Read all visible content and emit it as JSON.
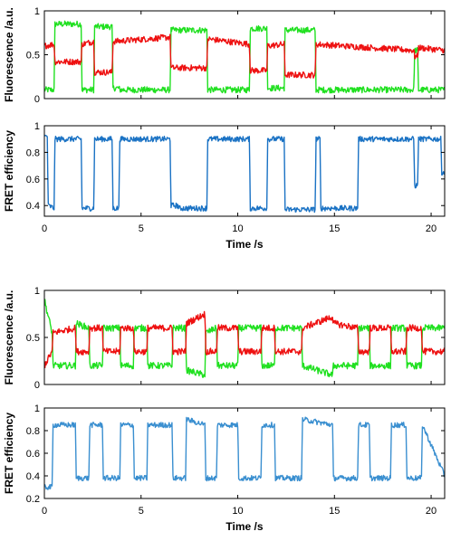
{
  "colors": {
    "donor": "#20e020",
    "acceptor": "#ee1111",
    "fret_top": "#1a72c4",
    "fret_bottom": "#3a8fd0"
  },
  "chart_data": [
    {
      "type": "line",
      "xlabel": "",
      "ylabel": "Fluorescence /a.u.",
      "xlim": [
        0,
        20.7
      ],
      "ylim": [
        0,
        1
      ],
      "xticks": [
        0,
        5,
        10,
        15,
        20
      ],
      "yticks": [
        0,
        0.5,
        1
      ],
      "ytick_labels": [
        "0",
        "0.5",
        "1"
      ],
      "grid": false,
      "series": [
        {
          "color": "#20e020",
          "x": [
            0.0,
            0.5,
            0.55,
            1.9,
            1.95,
            2.55,
            2.6,
            3.5,
            3.55,
            3.85,
            3.9,
            6.5,
            6.55,
            8.4,
            8.45,
            10.6,
            10.65,
            11.5,
            11.55,
            12.4,
            12.45,
            14.0,
            14.05,
            16.2,
            16.25,
            19.1,
            19.15,
            19.3,
            19.35,
            20.7
          ],
          "y": [
            0.1,
            0.1,
            0.85,
            0.85,
            0.1,
            0.1,
            0.82,
            0.82,
            0.12,
            0.12,
            0.1,
            0.1,
            0.78,
            0.78,
            0.1,
            0.1,
            0.8,
            0.8,
            0.12,
            0.12,
            0.78,
            0.78,
            0.1,
            0.1,
            0.1,
            0.1,
            0.55,
            0.55,
            0.1,
            0.1
          ]
        },
        {
          "color": "#ee1111",
          "x": [
            0.0,
            0.5,
            0.55,
            1.9,
            1.95,
            2.55,
            2.6,
            3.5,
            3.55,
            6.5,
            6.55,
            8.4,
            8.45,
            10.6,
            10.65,
            11.5,
            11.55,
            12.4,
            12.45,
            14.0,
            14.05,
            19.1,
            19.15,
            19.3,
            19.35,
            20.7
          ],
          "y": [
            0.6,
            0.62,
            0.42,
            0.42,
            0.62,
            0.65,
            0.3,
            0.3,
            0.65,
            0.7,
            0.35,
            0.35,
            0.68,
            0.62,
            0.32,
            0.32,
            0.6,
            0.62,
            0.27,
            0.27,
            0.62,
            0.55,
            0.48,
            0.48,
            0.58,
            0.55
          ]
        }
      ]
    },
    {
      "type": "line",
      "xlabel": "Time /s",
      "ylabel": "FRET efficiency",
      "xlim": [
        0,
        20.7
      ],
      "ylim": [
        0.32,
        1.0
      ],
      "xticks": [
        0,
        5,
        10,
        15,
        20
      ],
      "yticks": [
        0.4,
        0.6,
        0.8,
        1.0
      ],
      "ytick_labels": [
        "0.4",
        "0.6",
        "0.8",
        "1"
      ],
      "grid": false,
      "series": [
        {
          "color": "#1a72c4",
          "x": [
            0.0,
            0.15,
            0.2,
            0.5,
            0.55,
            1.9,
            1.95,
            2.55,
            2.6,
            3.5,
            3.55,
            3.85,
            3.9,
            6.5,
            6.55,
            6.9,
            6.95,
            8.4,
            8.45,
            10.6,
            10.65,
            11.5,
            11.55,
            12.4,
            12.45,
            14.0,
            14.05,
            14.25,
            14.3,
            16.2,
            16.25,
            19.1,
            19.15,
            19.3,
            19.35,
            20.5,
            20.55,
            20.7
          ],
          "y": [
            0.92,
            0.92,
            0.4,
            0.38,
            0.9,
            0.9,
            0.38,
            0.38,
            0.9,
            0.9,
            0.38,
            0.38,
            0.9,
            0.9,
            0.4,
            0.4,
            0.38,
            0.38,
            0.9,
            0.9,
            0.38,
            0.38,
            0.9,
            0.9,
            0.37,
            0.37,
            0.9,
            0.9,
            0.38,
            0.38,
            0.9,
            0.9,
            0.55,
            0.55,
            0.9,
            0.9,
            0.65,
            0.65
          ]
        }
      ]
    },
    {
      "type": "line",
      "xlabel": "",
      "ylabel": "Fluorescence /a.u.",
      "xlim": [
        0,
        20.7
      ],
      "ylim": [
        0,
        1
      ],
      "xticks": [
        0,
        5,
        10,
        15,
        20
      ],
      "yticks": [
        0,
        0.5,
        1
      ],
      "ytick_labels": [
        "0",
        "0.5",
        "1"
      ],
      "grid": false,
      "series": [
        {
          "color": "#20e020",
          "x": [
            0.0,
            0.4,
            0.45,
            1.6,
            1.65,
            2.3,
            2.35,
            3.0,
            3.05,
            3.9,
            3.95,
            4.6,
            4.65,
            5.3,
            5.35,
            6.6,
            6.65,
            7.3,
            7.35,
            8.3,
            8.35,
            8.9,
            8.95,
            10.0,
            10.05,
            11.2,
            11.25,
            11.9,
            11.95,
            13.3,
            13.35,
            14.9,
            14.95,
            16.2,
            16.25,
            16.8,
            16.85,
            17.9,
            17.95,
            18.7,
            18.75,
            19.5,
            19.55,
            20.7
          ],
          "y": [
            0.9,
            0.55,
            0.2,
            0.2,
            0.65,
            0.6,
            0.2,
            0.2,
            0.6,
            0.6,
            0.2,
            0.2,
            0.6,
            0.6,
            0.2,
            0.2,
            0.6,
            0.6,
            0.15,
            0.1,
            0.55,
            0.6,
            0.2,
            0.2,
            0.6,
            0.6,
            0.2,
            0.2,
            0.6,
            0.6,
            0.2,
            0.1,
            0.2,
            0.2,
            0.6,
            0.6,
            0.2,
            0.2,
            0.6,
            0.6,
            0.2,
            0.2,
            0.6,
            0.6
          ]
        },
        {
          "color": "#ee1111",
          "x": [
            0.0,
            0.4,
            0.45,
            1.6,
            1.65,
            2.3,
            2.35,
            3.0,
            3.05,
            3.9,
            3.95,
            4.6,
            4.65,
            5.3,
            5.35,
            6.6,
            6.65,
            7.3,
            7.35,
            8.3,
            8.35,
            8.9,
            8.95,
            10.0,
            10.05,
            11.2,
            11.25,
            11.9,
            11.95,
            13.3,
            13.35,
            14.9,
            14.95,
            16.2,
            16.25,
            16.8,
            16.85,
            17.9,
            17.95,
            18.7,
            18.75,
            19.5,
            19.55,
            20.7
          ],
          "y": [
            0.2,
            0.35,
            0.55,
            0.6,
            0.35,
            0.35,
            0.6,
            0.6,
            0.35,
            0.35,
            0.6,
            0.6,
            0.35,
            0.35,
            0.6,
            0.6,
            0.35,
            0.35,
            0.65,
            0.75,
            0.35,
            0.35,
            0.6,
            0.6,
            0.35,
            0.35,
            0.6,
            0.6,
            0.35,
            0.35,
            0.6,
            0.72,
            0.65,
            0.6,
            0.35,
            0.35,
            0.6,
            0.6,
            0.35,
            0.35,
            0.6,
            0.6,
            0.35,
            0.35
          ]
        }
      ]
    },
    {
      "type": "line",
      "xlabel": "Time /s",
      "ylabel": "FRET efficiency",
      "xlim": [
        0,
        20.7
      ],
      "ylim": [
        0.2,
        1.0
      ],
      "xticks": [
        0,
        5,
        10,
        15,
        20
      ],
      "yticks": [
        0.2,
        0.4,
        0.6,
        0.8,
        1.0
      ],
      "ytick_labels": [
        "0.2",
        "0.4",
        "0.6",
        "0.8",
        "1"
      ],
      "grid": false,
      "series": [
        {
          "color": "#3a8fd0",
          "x": [
            0.0,
            0.4,
            0.45,
            1.6,
            1.65,
            2.3,
            2.35,
            3.0,
            3.05,
            3.9,
            3.95,
            4.6,
            4.65,
            5.3,
            5.35,
            6.6,
            6.65,
            7.3,
            7.35,
            8.3,
            8.35,
            8.9,
            8.95,
            10.0,
            10.05,
            11.2,
            11.25,
            11.9,
            11.95,
            13.3,
            13.35,
            14.9,
            14.95,
            16.2,
            16.25,
            16.8,
            16.85,
            17.9,
            17.95,
            18.7,
            18.75,
            19.5,
            19.55,
            20.7
          ],
          "y": [
            0.3,
            0.3,
            0.85,
            0.85,
            0.38,
            0.38,
            0.85,
            0.85,
            0.38,
            0.38,
            0.85,
            0.85,
            0.38,
            0.38,
            0.85,
            0.85,
            0.38,
            0.38,
            0.9,
            0.85,
            0.38,
            0.38,
            0.85,
            0.85,
            0.38,
            0.38,
            0.85,
            0.85,
            0.38,
            0.38,
            0.9,
            0.85,
            0.38,
            0.38,
            0.85,
            0.85,
            0.38,
            0.38,
            0.85,
            0.85,
            0.38,
            0.38,
            0.85,
            0.4
          ]
        }
      ]
    }
  ]
}
